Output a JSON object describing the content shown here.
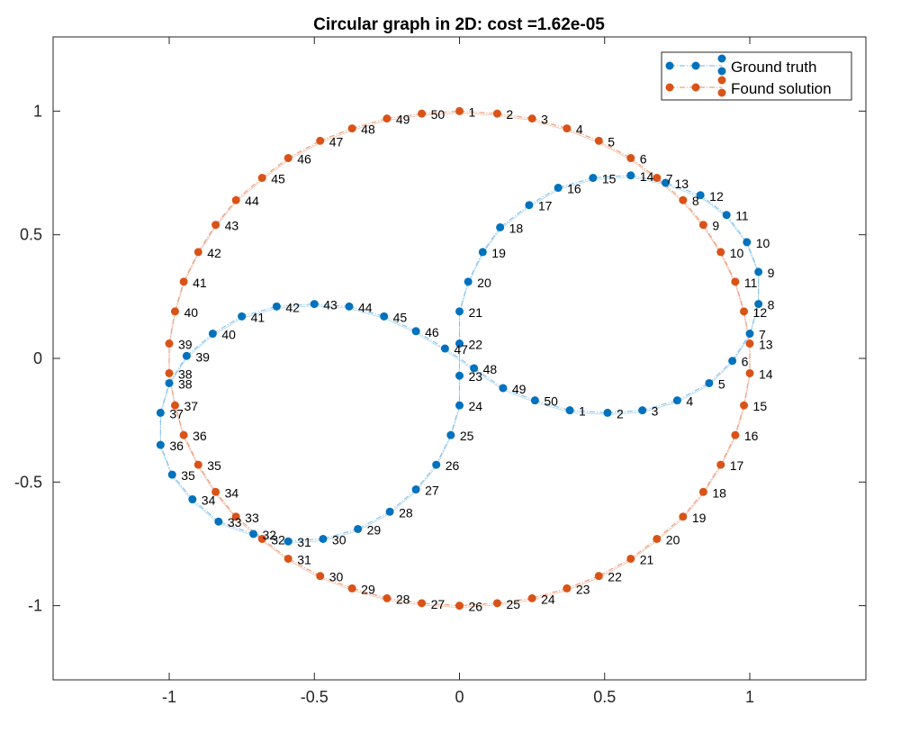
{
  "chart_data": {
    "type": "scatter",
    "title": "Circular graph in 2D: cost =1.62e-05",
    "xlim": [
      -1.4,
      1.4
    ],
    "ylim": [
      -1.3,
      1.3
    ],
    "xticks": [
      -1,
      -0.5,
      0,
      0.5,
      1
    ],
    "xtick_labels": [
      "-1",
      "-0.5",
      "0",
      "0.5",
      "1"
    ],
    "yticks": [
      -1,
      -0.5,
      0,
      0.5,
      1
    ],
    "ytick_labels": [
      "-1",
      "-0.5",
      "0",
      "0.5",
      "1"
    ],
    "grid": false,
    "legend_position": "top-right",
    "series": [
      {
        "name": "Ground truth",
        "color": "#0072BD",
        "edge_color": "#8EC4EA",
        "points": [
          {
            "label": "1",
            "x": 0.38,
            "y": -0.21
          },
          {
            "label": "2",
            "x": 0.51,
            "y": -0.22
          },
          {
            "label": "3",
            "x": 0.63,
            "y": -0.21
          },
          {
            "label": "4",
            "x": 0.75,
            "y": -0.17
          },
          {
            "label": "5",
            "x": 0.86,
            "y": -0.1
          },
          {
            "label": "6",
            "x": 0.94,
            "y": -0.01
          },
          {
            "label": "7",
            "x": 1.0,
            "y": 0.1
          },
          {
            "label": "8",
            "x": 1.03,
            "y": 0.22
          },
          {
            "label": "9",
            "x": 1.03,
            "y": 0.35
          },
          {
            "label": "10",
            "x": 0.99,
            "y": 0.47
          },
          {
            "label": "11",
            "x": 0.92,
            "y": 0.58
          },
          {
            "label": "12",
            "x": 0.83,
            "y": 0.66
          },
          {
            "label": "13",
            "x": 0.71,
            "y": 0.71
          },
          {
            "label": "14",
            "x": 0.59,
            "y": 0.74
          },
          {
            "label": "15",
            "x": 0.46,
            "y": 0.73
          },
          {
            "label": "16",
            "x": 0.34,
            "y": 0.69
          },
          {
            "label": "17",
            "x": 0.24,
            "y": 0.62
          },
          {
            "label": "18",
            "x": 0.14,
            "y": 0.53
          },
          {
            "label": "19",
            "x": 0.08,
            "y": 0.43
          },
          {
            "label": "20",
            "x": 0.03,
            "y": 0.31
          },
          {
            "label": "21",
            "x": 0.0,
            "y": 0.19
          },
          {
            "label": "22",
            "x": 0.0,
            "y": 0.06
          },
          {
            "label": "23",
            "x": 0.0,
            "y": -0.07
          },
          {
            "label": "24",
            "x": 0.0,
            "y": -0.19
          },
          {
            "label": "25",
            "x": -0.03,
            "y": -0.31
          },
          {
            "label": "26",
            "x": -0.08,
            "y": -0.43
          },
          {
            "label": "27",
            "x": -0.15,
            "y": -0.53
          },
          {
            "label": "28",
            "x": -0.24,
            "y": -0.62
          },
          {
            "label": "29",
            "x": -0.35,
            "y": -0.69
          },
          {
            "label": "30",
            "x": -0.47,
            "y": -0.73
          },
          {
            "label": "31",
            "x": -0.59,
            "y": -0.74
          },
          {
            "label": "32",
            "x": -0.71,
            "y": -0.71
          },
          {
            "label": "33",
            "x": -0.83,
            "y": -0.66
          },
          {
            "label": "34",
            "x": -0.92,
            "y": -0.57
          },
          {
            "label": "35",
            "x": -0.99,
            "y": -0.47
          },
          {
            "label": "36",
            "x": -1.03,
            "y": -0.35
          },
          {
            "label": "37",
            "x": -1.03,
            "y": -0.22
          },
          {
            "label": "38",
            "x": -1.0,
            "y": -0.1
          },
          {
            "label": "39",
            "x": -0.94,
            "y": 0.01
          },
          {
            "label": "40",
            "x": -0.85,
            "y": 0.1
          },
          {
            "label": "41",
            "x": -0.75,
            "y": 0.17
          },
          {
            "label": "42",
            "x": -0.63,
            "y": 0.21
          },
          {
            "label": "43",
            "x": -0.5,
            "y": 0.22
          },
          {
            "label": "44",
            "x": -0.38,
            "y": 0.21
          },
          {
            "label": "45",
            "x": -0.26,
            "y": 0.17
          },
          {
            "label": "46",
            "x": -0.15,
            "y": 0.11
          },
          {
            "label": "47",
            "x": -0.05,
            "y": 0.04
          },
          {
            "label": "48",
            "x": 0.05,
            "y": -0.04
          },
          {
            "label": "49",
            "x": 0.15,
            "y": -0.12
          },
          {
            "label": "50",
            "x": 0.26,
            "y": -0.17
          }
        ]
      },
      {
        "name": "Found solution",
        "color": "#D95319",
        "edge_color": "#EDA07E",
        "points": [
          {
            "label": "1",
            "x": 0.0,
            "y": 1.0
          },
          {
            "label": "2",
            "x": 0.13,
            "y": 0.99
          },
          {
            "label": "3",
            "x": 0.25,
            "y": 0.97
          },
          {
            "label": "4",
            "x": 0.37,
            "y": 0.93
          },
          {
            "label": "5",
            "x": 0.48,
            "y": 0.88
          },
          {
            "label": "6",
            "x": 0.59,
            "y": 0.81
          },
          {
            "label": "7",
            "x": 0.68,
            "y": 0.73
          },
          {
            "label": "8",
            "x": 0.77,
            "y": 0.64
          },
          {
            "label": "9",
            "x": 0.84,
            "y": 0.54
          },
          {
            "label": "10",
            "x": 0.9,
            "y": 0.43
          },
          {
            "label": "11",
            "x": 0.95,
            "y": 0.31
          },
          {
            "label": "12",
            "x": 0.98,
            "y": 0.19
          },
          {
            "label": "13",
            "x": 1.0,
            "y": 0.06
          },
          {
            "label": "14",
            "x": 1.0,
            "y": -0.06
          },
          {
            "label": "15",
            "x": 0.98,
            "y": -0.19
          },
          {
            "label": "16",
            "x": 0.95,
            "y": -0.31
          },
          {
            "label": "17",
            "x": 0.9,
            "y": -0.43
          },
          {
            "label": "18",
            "x": 0.84,
            "y": -0.54
          },
          {
            "label": "19",
            "x": 0.77,
            "y": -0.64
          },
          {
            "label": "20",
            "x": 0.68,
            "y": -0.73
          },
          {
            "label": "21",
            "x": 0.59,
            "y": -0.81
          },
          {
            "label": "22",
            "x": 0.48,
            "y": -0.88
          },
          {
            "label": "23",
            "x": 0.37,
            "y": -0.93
          },
          {
            "label": "24",
            "x": 0.25,
            "y": -0.97
          },
          {
            "label": "25",
            "x": 0.13,
            "y": -0.99
          },
          {
            "label": "26",
            "x": 0.0,
            "y": -1.0
          },
          {
            "label": "27",
            "x": -0.13,
            "y": -0.99
          },
          {
            "label": "28",
            "x": -0.25,
            "y": -0.97
          },
          {
            "label": "29",
            "x": -0.37,
            "y": -0.93
          },
          {
            "label": "30",
            "x": -0.48,
            "y": -0.88
          },
          {
            "label": "31",
            "x": -0.59,
            "y": -0.81
          },
          {
            "label": "32",
            "x": -0.68,
            "y": -0.73
          },
          {
            "label": "33",
            "x": -0.77,
            "y": -0.64
          },
          {
            "label": "34",
            "x": -0.84,
            "y": -0.54
          },
          {
            "label": "35",
            "x": -0.9,
            "y": -0.43
          },
          {
            "label": "36",
            "x": -0.95,
            "y": -0.31
          },
          {
            "label": "37",
            "x": -0.98,
            "y": -0.19
          },
          {
            "label": "38",
            "x": -1.0,
            "y": -0.06
          },
          {
            "label": "39",
            "x": -1.0,
            "y": 0.06
          },
          {
            "label": "40",
            "x": -0.98,
            "y": 0.19
          },
          {
            "label": "41",
            "x": -0.95,
            "y": 0.31
          },
          {
            "label": "42",
            "x": -0.9,
            "y": 0.43
          },
          {
            "label": "43",
            "x": -0.84,
            "y": 0.54
          },
          {
            "label": "44",
            "x": -0.77,
            "y": 0.64
          },
          {
            "label": "45",
            "x": -0.68,
            "y": 0.73
          },
          {
            "label": "46",
            "x": -0.59,
            "y": 0.81
          },
          {
            "label": "47",
            "x": -0.48,
            "y": 0.88
          },
          {
            "label": "48",
            "x": -0.37,
            "y": 0.93
          },
          {
            "label": "49",
            "x": -0.25,
            "y": 0.97
          },
          {
            "label": "50",
            "x": -0.13,
            "y": 0.99
          }
        ]
      }
    ]
  }
}
